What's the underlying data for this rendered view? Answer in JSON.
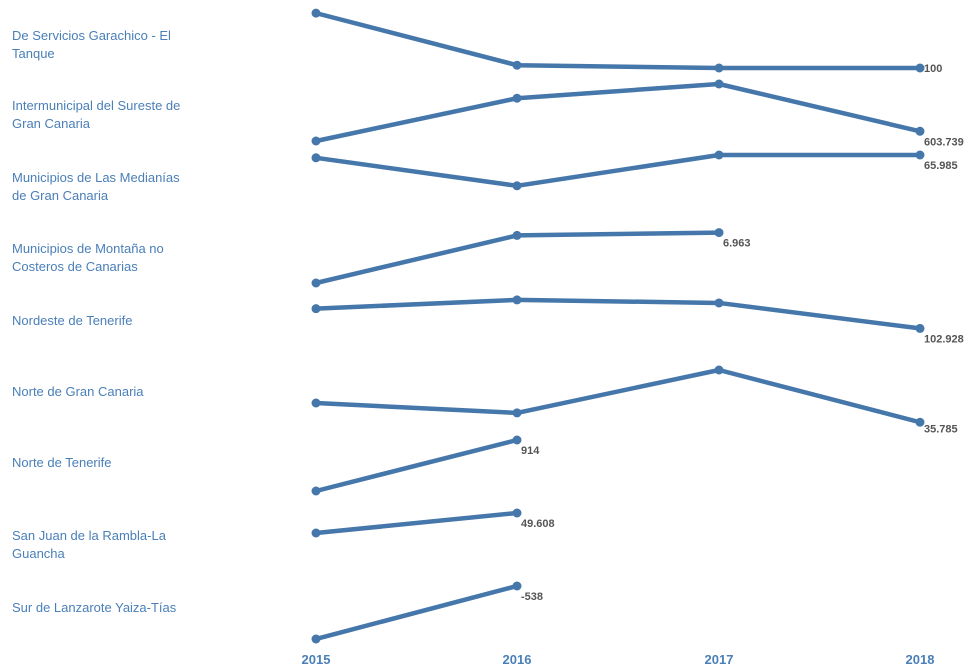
{
  "chart_data": {
    "type": "line",
    "layout": "small-multiples",
    "title": "",
    "xlabel": "",
    "ylabel": "",
    "x": [
      "2015",
      "2016",
      "2017",
      "2018"
    ],
    "line_color": "#4577ab",
    "label_color": "#4a7fb8",
    "grid": false,
    "legend": "none",
    "series": [
      {
        "name": "De Servicios Garachico - El Tanque",
        "label_lines": [
          "De Servicios Garachico - El",
          "Tanque"
        ],
        "values": [
          0.98,
          0.05,
          0.0,
          0.0
        ],
        "last_label": "100"
      },
      {
        "name": "Intermunicipal del Sureste de Gran Canaria",
        "label_lines": [
          "Intermunicipal del Sureste de",
          "Gran Canaria"
        ],
        "values": [
          0.0,
          0.75,
          1.0,
          0.17
        ],
        "last_label": "603.739"
      },
      {
        "name": "Municipios de Las Medianías de Gran Canaria",
        "label_lines": [
          "Municipios de Las Medianías",
          "de Gran Canaria"
        ],
        "values": [
          0.95,
          0.45,
          1.0,
          1.0
        ],
        "last_label": "65.985"
      },
      {
        "name": "Municipios de Montaña no Costeros de Canarias",
        "label_lines": [
          "Municipios de Montaña no",
          "Costeros de Canarias"
        ],
        "values": [
          0.0,
          0.85,
          0.9,
          null
        ],
        "last_label": "6.963"
      },
      {
        "name": "Nordeste de Tenerife",
        "label_lines": [
          "Nordeste de Tenerife"
        ],
        "values": [
          0.72,
          0.95,
          0.87,
          0.2
        ],
        "last_label": "102.928"
      },
      {
        "name": "Norte de Gran Canaria",
        "label_lines": [
          "Norte de Gran Canaria"
        ],
        "values": [
          0.4,
          0.22,
          1.0,
          0.05
        ],
        "last_label": "35.785"
      },
      {
        "name": "Norte de Tenerife",
        "label_lines": [
          "Norte de Tenerife"
        ],
        "values": [
          0.0,
          1.0,
          null,
          null
        ],
        "last_label": "914"
      },
      {
        "name": "San Juan de la Rambla-La Guancha",
        "label_lines": [
          "San Juan de la Rambla-La",
          "Guancha"
        ],
        "values": [
          0.0,
          1.0,
          null,
          null
        ],
        "last_label": "49.608"
      },
      {
        "name": "Sur de Lanzarote Yaiza-Tías",
        "label_lines": [
          "Sur de Lanzarote Yaiza-Tías"
        ],
        "values": [
          0.0,
          1.0,
          null,
          null
        ],
        "last_label": "-538"
      }
    ]
  }
}
